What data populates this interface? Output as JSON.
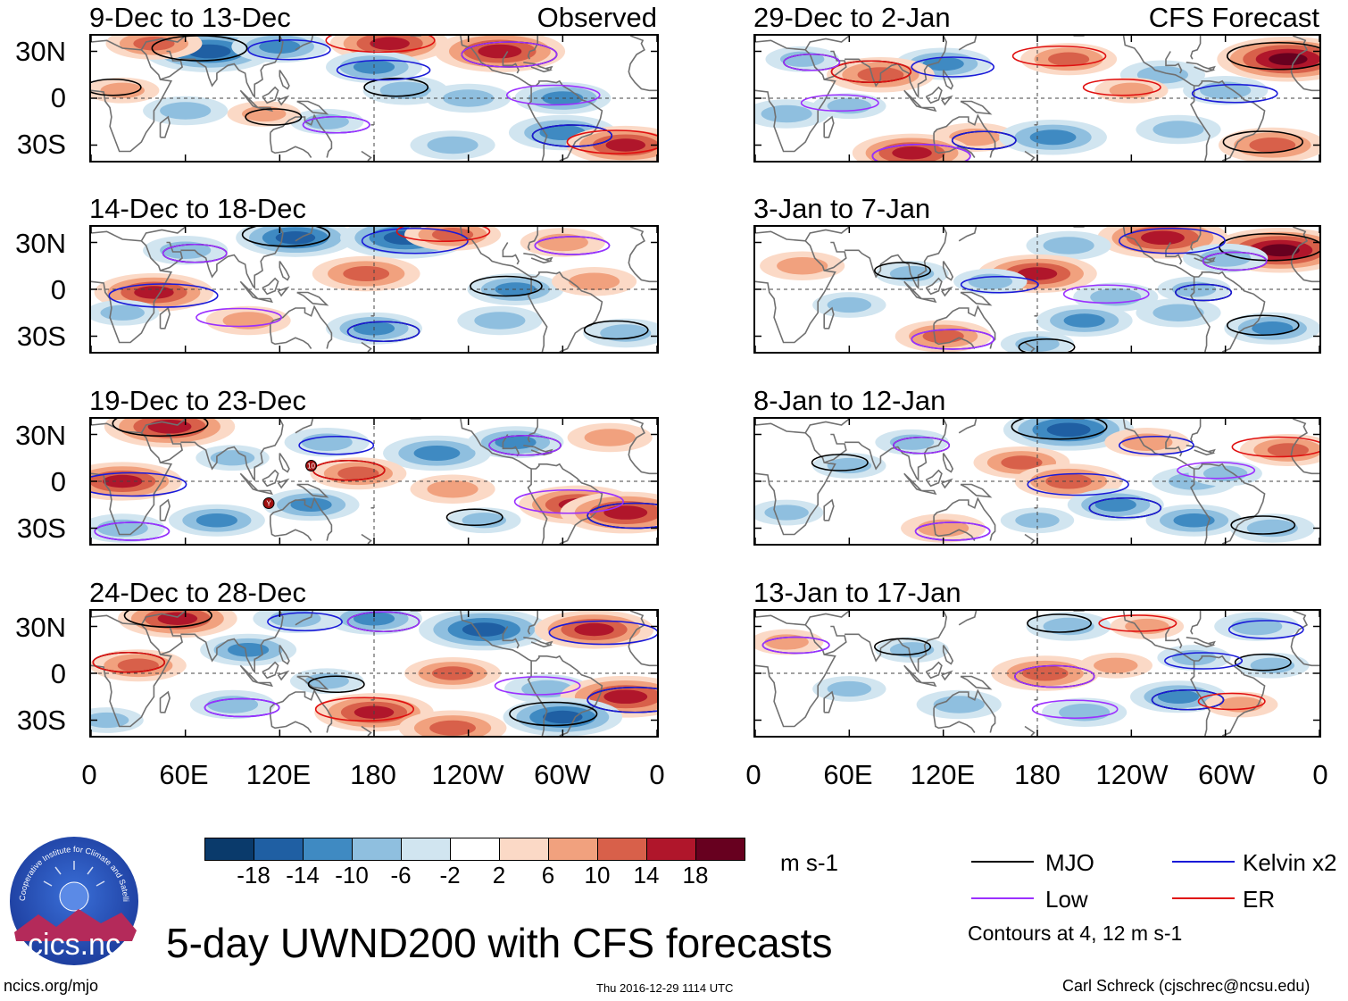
{
  "colors": {
    "MJO": "#000000",
    "Kelvin": "#1a1ad8",
    "Low": "#9b30ff",
    "ER": "#e01010",
    "land": "#707070",
    "scale": [
      "#0a3a6b",
      "#1f5fa3",
      "#3f8ac2",
      "#8fbfdf",
      "#d1e5f0",
      "#ffffff",
      "#fbd9c6",
      "#f1a17e",
      "#d8604a",
      "#b0162b",
      "#67001f"
    ]
  },
  "panels": [
    {
      "title": "9-Dec to 13-Dec",
      "tag": "Observed"
    },
    {
      "title": "14-Dec to 18-Dec",
      "tag": ""
    },
    {
      "title": "19-Dec to 23-Dec",
      "tag": ""
    },
    {
      "title": "24-Dec to 28-Dec",
      "tag": ""
    },
    {
      "title": "29-Dec to 2-Jan",
      "tag": "CFS Forecast"
    },
    {
      "title": "3-Jan to 7-Jan",
      "tag": ""
    },
    {
      "title": "8-Jan to 12-Jan",
      "tag": ""
    },
    {
      "title": "13-Jan to 17-Jan",
      "tag": ""
    }
  ],
  "lat_labels": [
    "30N",
    "0",
    "30S"
  ],
  "lon_labels": [
    "0",
    "60E",
    "120E",
    "180",
    "120W",
    "60W",
    "0"
  ],
  "colorbar": {
    "ticks": [
      "-18",
      "-14",
      "-10",
      "-6",
      "-2",
      "2",
      "6",
      "10",
      "14",
      "18"
    ],
    "unit": "m s-1"
  },
  "legend": {
    "items": [
      {
        "label": "MJO",
        "color_key": "MJO"
      },
      {
        "label": "Kelvin x2",
        "color_key": "Kelvin"
      },
      {
        "label": "Low",
        "color_key": "Low"
      },
      {
        "label": "ER",
        "color_key": "ER"
      }
    ],
    "contours_note": "Contours at 4, 12 m s-1"
  },
  "title": "5-day UWND200 with CFS forecasts",
  "logo_text": "cics.nc",
  "logo_ring_text": "Cooperative Institute for Climate and Satellites",
  "footer": {
    "left": "ncics.org/mjo",
    "center": "Thu 2016-12-29 1114 UTC",
    "right": "Carl Schreck (cjschrec@ncsu.edu)"
  },
  "storm_markers": [
    {
      "panel": 2,
      "label": "10",
      "lon": 140,
      "lat": 10
    },
    {
      "panel": 2,
      "label": "Y",
      "lon": 113,
      "lat": -14
    }
  ],
  "chart_data": {
    "type": "heatmap",
    "variable": "200-hPa zonal wind anomaly (UWND200), 5-day means",
    "unit": "m s-1",
    "x_axis": {
      "range": [
        0,
        360
      ],
      "ticks": [
        "0",
        "60E",
        "120E",
        "180",
        "120W",
        "60W",
        "0"
      ]
    },
    "y_axis": {
      "range": [
        -40,
        40
      ],
      "ticks": [
        "30N",
        "0",
        "30S"
      ]
    },
    "color_levels": [
      -18,
      -14,
      -10,
      -6,
      -2,
      2,
      6,
      10,
      14,
      18
    ],
    "contour_levels": [
      4,
      12
    ],
    "contour_fields": [
      "MJO",
      "Kelvin x2",
      "Low",
      "ER"
    ],
    "panels": [
      {
        "period": "9-Dec to 13-Dec",
        "source": "Observed",
        "blobs": [
          [
            75,
            30,
            -16
          ],
          [
            120,
            33,
            -10
          ],
          [
            190,
            35,
            14
          ],
          [
            260,
            30,
            16
          ],
          [
            40,
            35,
            10
          ],
          [
            180,
            20,
            -10
          ],
          [
            200,
            5,
            -8
          ],
          [
            240,
            0,
            -8
          ],
          [
            300,
            0,
            -10
          ],
          [
            300,
            -22,
            -12
          ],
          [
            340,
            -30,
            14
          ],
          [
            60,
            -8,
            -8
          ],
          [
            20,
            5,
            6
          ],
          [
            150,
            -15,
            -6
          ],
          [
            230,
            -30,
            -8
          ],
          [
            110,
            -10,
            6
          ]
        ]
      },
      {
        "period": "14-Dec to 18-Dec",
        "source": "Observed",
        "blobs": [
          [
            130,
            33,
            -14
          ],
          [
            200,
            33,
            -16
          ],
          [
            230,
            35,
            10
          ],
          [
            60,
            25,
            -8
          ],
          [
            175,
            10,
            12
          ],
          [
            40,
            -2,
            14
          ],
          [
            270,
            0,
            -10
          ],
          [
            320,
            5,
            8
          ],
          [
            100,
            -20,
            8
          ],
          [
            180,
            -25,
            -10
          ],
          [
            260,
            -20,
            -8
          ],
          [
            20,
            -15,
            -6
          ],
          [
            340,
            -28,
            -8
          ],
          [
            300,
            30,
            8
          ]
        ]
      },
      {
        "period": "19-Dec to 23-Dec",
        "source": "Observed",
        "blobs": [
          [
            50,
            35,
            16
          ],
          [
            150,
            25,
            -8
          ],
          [
            220,
            18,
            -12
          ],
          [
            270,
            25,
            -10
          ],
          [
            330,
            28,
            8
          ],
          [
            20,
            0,
            14
          ],
          [
            170,
            5,
            10
          ],
          [
            230,
            -5,
            8
          ],
          [
            310,
            -15,
            14
          ],
          [
            340,
            -20,
            16
          ],
          [
            140,
            -15,
            -10
          ],
          [
            80,
            -25,
            -10
          ],
          [
            250,
            -25,
            -6
          ],
          [
            20,
            -30,
            -8
          ],
          [
            90,
            15,
            -6
          ]
        ]
      },
      {
        "period": "24-Dec to 28-Dec",
        "source": "Observed",
        "blobs": [
          [
            55,
            35,
            14
          ],
          [
            130,
            35,
            -8
          ],
          [
            100,
            15,
            -10
          ],
          [
            180,
            35,
            -10
          ],
          [
            250,
            28,
            -16
          ],
          [
            320,
            28,
            14
          ],
          [
            30,
            5,
            10
          ],
          [
            230,
            0,
            10
          ],
          [
            290,
            -10,
            -8
          ],
          [
            340,
            -15,
            16
          ],
          [
            180,
            -25,
            14
          ],
          [
            230,
            -35,
            12
          ],
          [
            300,
            -28,
            -14
          ],
          [
            90,
            -20,
            -8
          ],
          [
            10,
            -30,
            -6
          ],
          [
            150,
            -5,
            -6
          ]
        ]
      },
      {
        "period": "29-Dec to 2-Jan",
        "source": "CFS Forecast",
        "blobs": [
          [
            340,
            25,
            18
          ],
          [
            120,
            22,
            -10
          ],
          [
            200,
            25,
            10
          ],
          [
            30,
            25,
            -6
          ],
          [
            260,
            15,
            -8
          ],
          [
            300,
            5,
            -8
          ],
          [
            80,
            15,
            12
          ],
          [
            20,
            -10,
            -8
          ],
          [
            60,
            -5,
            -6
          ],
          [
            140,
            -25,
            8
          ],
          [
            190,
            -25,
            -12
          ],
          [
            270,
            -20,
            -8
          ],
          [
            330,
            -30,
            12
          ],
          [
            100,
            -35,
            14
          ],
          [
            240,
            5,
            6
          ]
        ]
      },
      {
        "period": "3-Jan to 7-Jan",
        "source": "CFS Forecast",
        "blobs": [
          [
            335,
            25,
            18
          ],
          [
            260,
            33,
            16
          ],
          [
            200,
            28,
            -8
          ],
          [
            300,
            20,
            -8
          ],
          [
            180,
            10,
            14
          ],
          [
            150,
            5,
            -6
          ],
          [
            100,
            10,
            -6
          ],
          [
            30,
            15,
            8
          ],
          [
            230,
            -5,
            -8
          ],
          [
            280,
            0,
            -6
          ],
          [
            210,
            -20,
            -10
          ],
          [
            270,
            -15,
            -8
          ],
          [
            330,
            -25,
            -10
          ],
          [
            120,
            -30,
            10
          ],
          [
            60,
            -10,
            -6
          ],
          [
            180,
            -35,
            -6
          ]
        ]
      },
      {
        "period": "8-Jan to 12-Jan",
        "source": "CFS Forecast",
        "blobs": [
          [
            200,
            33,
            -16
          ],
          [
            250,
            25,
            8
          ],
          [
            340,
            20,
            10
          ],
          [
            100,
            25,
            -6
          ],
          [
            170,
            12,
            10
          ],
          [
            200,
            0,
            12
          ],
          [
            60,
            10,
            -6
          ],
          [
            280,
            0,
            -8
          ],
          [
            300,
            5,
            -6
          ],
          [
            230,
            -15,
            -10
          ],
          [
            180,
            -25,
            -6
          ],
          [
            280,
            -25,
            -10
          ],
          [
            330,
            -30,
            -8
          ],
          [
            120,
            -30,
            8
          ],
          [
            20,
            -20,
            -6
          ]
        ]
      },
      {
        "period": "13-Jan to 17-Jan",
        "source": "CFS Forecast",
        "blobs": [
          [
            200,
            30,
            -8
          ],
          [
            320,
            30,
            -8
          ],
          [
            250,
            30,
            6
          ],
          [
            185,
            0,
            12
          ],
          [
            230,
            5,
            6
          ],
          [
            280,
            10,
            -6
          ],
          [
            100,
            15,
            -6
          ],
          [
            130,
            -20,
            -8
          ],
          [
            210,
            -25,
            -8
          ],
          [
            270,
            -15,
            -10
          ],
          [
            310,
            -20,
            6
          ],
          [
            60,
            -10,
            -6
          ],
          [
            330,
            5,
            -6
          ],
          [
            20,
            20,
            6
          ]
        ]
      }
    ]
  }
}
